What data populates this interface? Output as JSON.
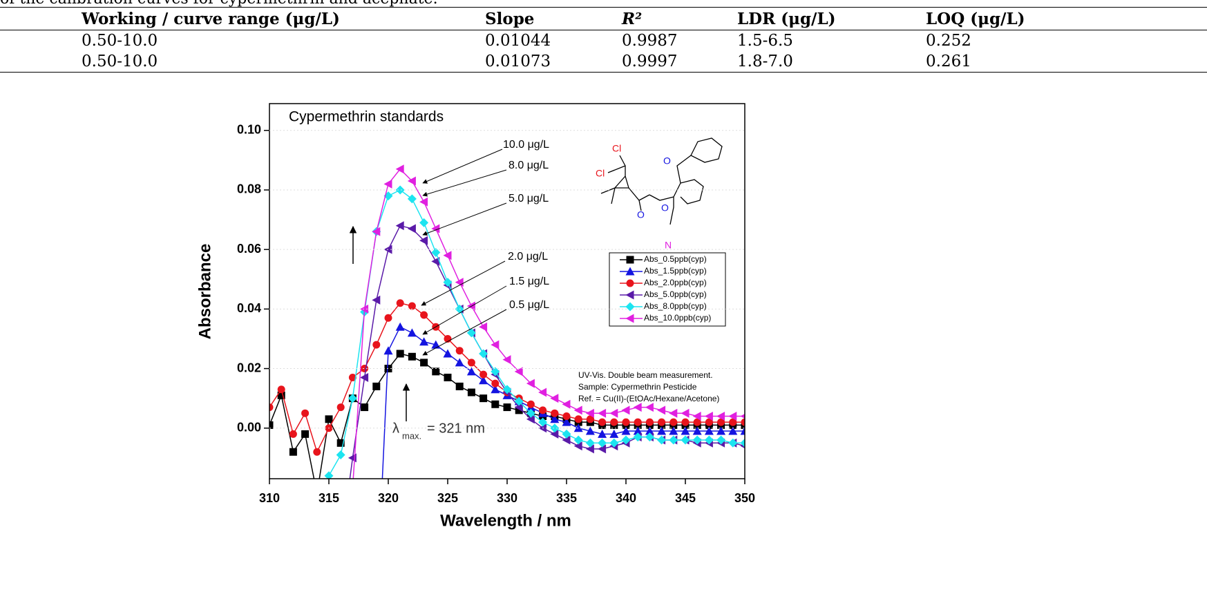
{
  "caption": "of the calibration curves for cypermethrin and acephate.",
  "table": {
    "header": [
      "Working / curve range (μg/L)",
      "Slope",
      "R²",
      "LDR (μg/L)",
      "LOQ (μg/L)"
    ],
    "rows": [
      [
        "0.50-10.0",
        "0.01044",
        "0.9987",
        "1.5-6.5",
        "0.252"
      ],
      [
        "0.50-10.0",
        "0.01073",
        "0.9997",
        "1.8-7.0",
        "0.261"
      ]
    ]
  },
  "chart_data": {
    "type": "line",
    "title": "Cypermethrin standards",
    "xlabel": "Wavelength / nm",
    "ylabel": "Absorbance",
    "x": [
      310,
      311,
      312,
      313,
      314,
      315,
      316,
      317,
      318,
      319,
      320,
      321,
      322,
      323,
      324,
      325,
      326,
      327,
      328,
      329,
      330,
      331,
      332,
      333,
      334,
      335,
      336,
      337,
      338,
      339,
      340,
      341,
      342,
      343,
      344,
      345,
      346,
      347,
      348,
      349,
      350
    ],
    "series": [
      {
        "name": "Abs_0.5ppb(cyp)",
        "color": "#000000",
        "marker": "square",
        "values": [
          0.001,
          0.011,
          -0.008,
          -0.002,
          -0.022,
          0.003,
          -0.005,
          0.01,
          0.007,
          0.014,
          0.02,
          0.025,
          0.024,
          0.022,
          0.019,
          0.017,
          0.014,
          0.012,
          0.01,
          0.008,
          0.007,
          0.006,
          0.005,
          0.004,
          0.004,
          0.003,
          0.002,
          0.002,
          0.001,
          0.001,
          0.001,
          0.001,
          0.001,
          0.001,
          0.001,
          0.001,
          0.001,
          0.001,
          0.001,
          0.001,
          0.001
        ]
      },
      {
        "name": "Abs_1.5ppb(cyp)",
        "color": "#1414e0",
        "marker": "triangle",
        "values": [
          null,
          null,
          null,
          null,
          null,
          null,
          null,
          null,
          null,
          -0.06,
          0.026,
          0.034,
          0.032,
          0.029,
          0.028,
          0.025,
          0.022,
          0.019,
          0.016,
          0.013,
          0.011,
          0.009,
          0.007,
          0.005,
          0.003,
          0.002,
          0.0,
          -0.001,
          -0.002,
          -0.002,
          -0.001,
          -0.001,
          -0.001,
          -0.001,
          -0.001,
          -0.001,
          -0.001,
          -0.001,
          -0.001,
          -0.001,
          -0.001
        ]
      },
      {
        "name": "Abs_2.0ppb(cyp)",
        "color": "#e8141c",
        "marker": "circle",
        "values": [
          0.007,
          0.013,
          -0.002,
          0.005,
          -0.008,
          0.0,
          0.007,
          0.017,
          0.02,
          0.028,
          0.037,
          0.042,
          0.041,
          0.038,
          0.034,
          0.03,
          0.026,
          0.022,
          0.018,
          0.015,
          0.012,
          0.01,
          0.008,
          0.006,
          0.005,
          0.004,
          0.003,
          0.003,
          0.002,
          0.002,
          0.002,
          0.002,
          0.002,
          0.002,
          0.002,
          0.002,
          0.002,
          0.002,
          0.002,
          0.002,
          0.002
        ]
      },
      {
        "name": "Abs_5.0ppb(cyp)",
        "color": "#5a1aa8",
        "marker": "left",
        "values": [
          null,
          null,
          null,
          null,
          null,
          null,
          -0.04,
          -0.01,
          0.017,
          0.043,
          0.06,
          0.068,
          0.067,
          0.063,
          0.056,
          0.048,
          0.04,
          0.032,
          0.025,
          0.018,
          0.012,
          0.007,
          0.003,
          0.0,
          -0.002,
          -0.004,
          -0.006,
          -0.007,
          -0.007,
          -0.006,
          -0.005,
          -0.003,
          -0.003,
          -0.004,
          -0.004,
          -0.004,
          -0.005,
          -0.005,
          -0.005,
          -0.005,
          -0.006
        ]
      },
      {
        "name": "Abs_8.0ppb(cyp)",
        "color": "#1ce4f0",
        "marker": "diamond",
        "values": [
          null,
          null,
          null,
          null,
          -0.03,
          -0.016,
          -0.009,
          0.01,
          0.039,
          0.066,
          0.078,
          0.08,
          0.077,
          0.069,
          0.059,
          0.049,
          0.04,
          0.032,
          0.025,
          0.019,
          0.013,
          0.009,
          0.005,
          0.002,
          0.0,
          -0.002,
          -0.004,
          -0.005,
          -0.005,
          -0.005,
          -0.004,
          -0.003,
          -0.003,
          -0.004,
          -0.004,
          -0.004,
          -0.004,
          -0.004,
          -0.004,
          -0.005,
          -0.005
        ]
      },
      {
        "name": "Abs_10.0ppb(cyp)",
        "color": "#e020e0",
        "marker": "left",
        "values": [
          null,
          null,
          null,
          null,
          null,
          null,
          null,
          -0.02,
          0.04,
          0.066,
          0.082,
          0.087,
          0.083,
          0.076,
          0.067,
          0.058,
          0.049,
          0.041,
          0.034,
          0.028,
          0.023,
          0.019,
          0.015,
          0.012,
          0.01,
          0.008,
          0.006,
          0.005,
          0.005,
          0.005,
          0.006,
          0.007,
          0.007,
          0.006,
          0.005,
          0.005,
          0.004,
          0.004,
          0.004,
          0.004,
          0.004
        ]
      }
    ],
    "xlim": [
      310,
      350
    ],
    "xticks": [
      310,
      315,
      320,
      325,
      330,
      335,
      340,
      345,
      350
    ],
    "ylim": [
      -0.017,
      0.109
    ],
    "yticks": [
      {
        "value": 0,
        "label": "0.00"
      },
      {
        "value": 0.02,
        "label": "0.02"
      },
      {
        "value": 0.04,
        "label": "0.04"
      },
      {
        "value": 0.06,
        "label": "0.06"
      },
      {
        "value": 0.08,
        "label": "0.08"
      },
      {
        "value": 0.1,
        "label": "0.10"
      }
    ],
    "grid": true,
    "legend": "right",
    "annotations": [
      "10.0 μg/L",
      "8.0 μg/L",
      "5.0 μg/L",
      "2.0 μg/L",
      "1.5 μg/L",
      "0.5 μg/L",
      "UV-Vis. Double beam measurement.",
      "Sample: Cypermethrin Pesticide",
      "Ref. = Cu(II)-(EtOAc/Hexane/Acetone)"
    ],
    "lambda": [
      "λ",
      "max.",
      "= 321 nm"
    ],
    "structure_labels": [
      "Cl",
      "Cl",
      "O",
      "O",
      "O",
      "N"
    ]
  }
}
